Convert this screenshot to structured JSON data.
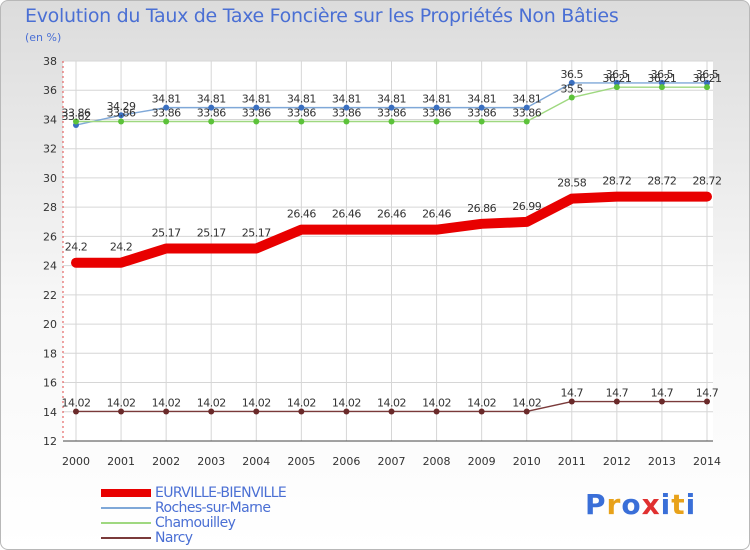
{
  "title": "Evolution du Taux de Taxe Foncière sur les Propriétés Non Bâties",
  "unit_label": "(en %)",
  "logo": {
    "text": "Proxiti",
    "letters": [
      "P",
      "r",
      "o",
      "x",
      "i",
      "t",
      "i"
    ],
    "colors": [
      "#3a6fd8",
      "#e8a21a",
      "#3a6fd8",
      "#e03030",
      "#3a6fd8",
      "#e8a21a",
      "#3a6fd8"
    ]
  },
  "chart_data": {
    "type": "line",
    "title": "Evolution du Taux de Taxe Foncière sur les Propriétés Non Bâties",
    "ylabel": "(en %)",
    "ylim": [
      12,
      38
    ],
    "yticks": [
      "12",
      "14",
      "16",
      "18",
      "20",
      "22",
      "24",
      "26",
      "28",
      "30",
      "32",
      "34",
      "36",
      "38"
    ],
    "categories": [
      "2000",
      "2001",
      "2002",
      "2003",
      "2004",
      "2005",
      "2006",
      "2007",
      "2008",
      "2009",
      "2010",
      "2011",
      "2012",
      "2013",
      "2014"
    ],
    "series": [
      {
        "name": "EURVILLE-BIENVILLE",
        "color": "#e80000",
        "thick": true,
        "values": [
          24.2,
          24.2,
          25.17,
          25.17,
          25.17,
          26.46,
          26.46,
          26.46,
          26.46,
          26.86,
          26.99,
          28.58,
          28.72,
          28.72,
          28.72
        ],
        "labels": [
          "24.2",
          "24.2",
          "25.17",
          "25.17",
          "25.17",
          "26.46",
          "26.46",
          "26.46",
          "26.46",
          "26.86",
          "26.99",
          "28.58",
          "28.72",
          "28.72",
          "28.72"
        ]
      },
      {
        "name": "Roches-sur-Marne",
        "color": "#7fa8d8",
        "marker": "#3a6fc0",
        "thick": false,
        "values": [
          33.62,
          34.29,
          34.81,
          34.81,
          34.81,
          34.81,
          34.81,
          34.81,
          34.81,
          34.81,
          34.81,
          36.5,
          36.5,
          36.5,
          36.5
        ],
        "labels": [
          "33.62",
          "34.29",
          "34.81",
          "34.81",
          "34.81",
          "34.81",
          "34.81",
          "34.81",
          "34.81",
          "34.81",
          "34.81",
          "36.5",
          "36.5",
          "36.5",
          "36.5"
        ]
      },
      {
        "name": "Chamouilley",
        "color": "#9fd880",
        "marker": "#5cc23a",
        "thick": false,
        "values": [
          33.86,
          33.86,
          33.86,
          33.86,
          33.86,
          33.86,
          33.86,
          33.86,
          33.86,
          33.86,
          33.86,
          35.5,
          36.21,
          36.21,
          36.21
        ],
        "labels": [
          "33.86",
          "33.86",
          "33.86",
          "33.86",
          "33.86",
          "33.86",
          "33.86",
          "33.86",
          "33.86",
          "33.86",
          "33.86",
          "35.5",
          "36.21",
          "36.21",
          "36.21"
        ]
      },
      {
        "name": "Narcy",
        "color": "#7a3a3a",
        "marker": "#6a2a2a",
        "thick": false,
        "values": [
          14.02,
          14.02,
          14.02,
          14.02,
          14.02,
          14.02,
          14.02,
          14.02,
          14.02,
          14.02,
          14.02,
          14.7,
          14.7,
          14.7,
          14.7
        ],
        "labels": [
          "14.02",
          "14.02",
          "14.02",
          "14.02",
          "14.02",
          "14.02",
          "14.02",
          "14.02",
          "14.02",
          "14.02",
          "14.02",
          "14.7",
          "14.7",
          "14.7",
          "14.7"
        ]
      }
    ]
  }
}
